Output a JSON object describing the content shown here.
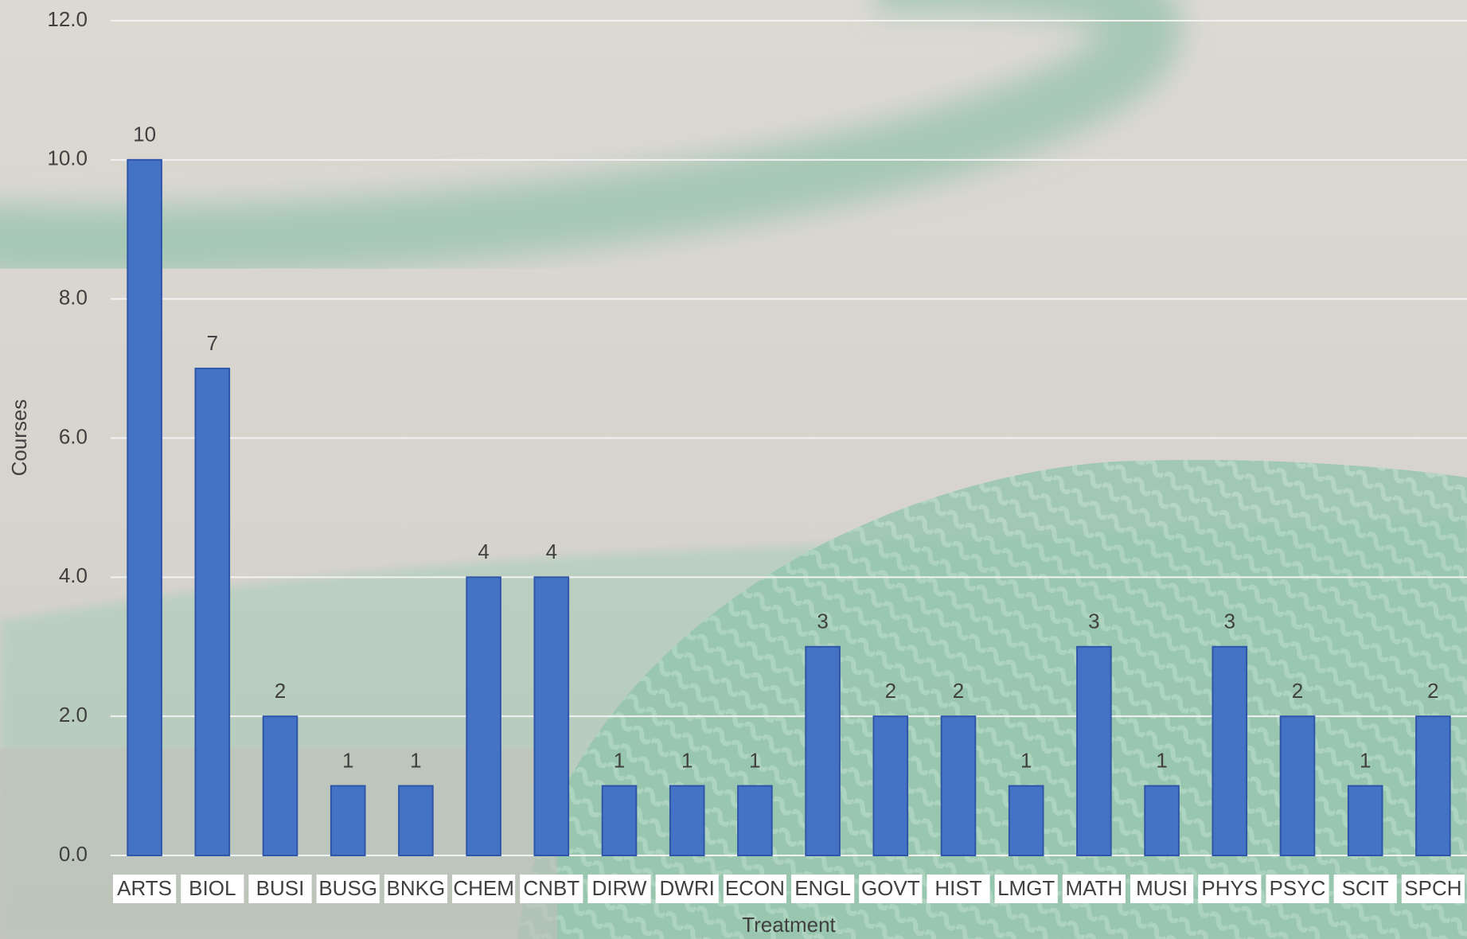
{
  "chart_data": {
    "type": "bar",
    "categories": [
      "ARTS",
      "BIOL",
      "BUSI",
      "BUSG",
      "BNKG",
      "CHEM",
      "CNBT",
      "DIRW",
      "DWRI",
      "ECON",
      "ENGL",
      "GOVT",
      "HIST",
      "LMGT",
      "MATH",
      "MUSI",
      "PHYS",
      "PSYC",
      "SCIT",
      "SPCH"
    ],
    "values": [
      10,
      7,
      2,
      1,
      1,
      4,
      4,
      1,
      1,
      1,
      3,
      2,
      2,
      1,
      3,
      1,
      3,
      2,
      1,
      2
    ],
    "color": "#4472c4",
    "ylim": [
      0,
      12
    ],
    "yticks": [
      {
        "value": 0,
        "label": "0.0"
      },
      {
        "value": 2,
        "label": "2.0"
      },
      {
        "value": 4,
        "label": "4.0"
      },
      {
        "value": 6,
        "label": "6.0"
      },
      {
        "value": 8,
        "label": "8.0"
      },
      {
        "value": 10,
        "label": "10.0"
      },
      {
        "value": 12,
        "label": "12.0"
      }
    ],
    "grid": true,
    "x_label": "Treatment",
    "y_label": "Courses"
  }
}
